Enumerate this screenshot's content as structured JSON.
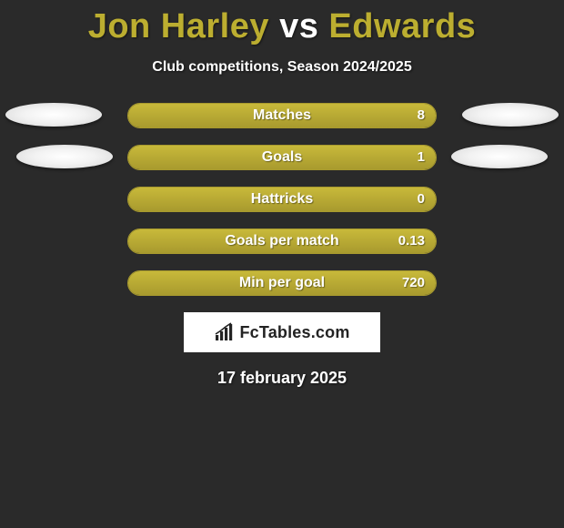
{
  "title_color": "#bcae30",
  "title_player1": "Jon Harley",
  "title_vs": "vs",
  "title_player2": "Edwards",
  "subtitle": "Club competitions, Season 2024/2025",
  "rows": [
    {
      "label": "Matches",
      "left_val": "",
      "right_val": "8",
      "left_pct": 0,
      "right_pct": 100,
      "show_el_left": true,
      "show_el_right": true,
      "el_class_left": "l1",
      "el_class_right": "r1"
    },
    {
      "label": "Goals",
      "left_val": "",
      "right_val": "1",
      "left_pct": 0,
      "right_pct": 100,
      "show_el_left": true,
      "show_el_right": true,
      "el_class_left": "l2",
      "el_class_right": "r2"
    },
    {
      "label": "Hattricks",
      "left_val": "",
      "right_val": "0",
      "left_pct": 50,
      "right_pct": 50,
      "show_el_left": false,
      "show_el_right": false,
      "el_class_left": "",
      "el_class_right": ""
    },
    {
      "label": "Goals per match",
      "left_val": "",
      "right_val": "0.13",
      "left_pct": 0,
      "right_pct": 100,
      "show_el_left": false,
      "show_el_right": false,
      "el_class_left": "",
      "el_class_right": ""
    },
    {
      "label": "Min per goal",
      "left_val": "",
      "right_val": "720",
      "left_pct": 0,
      "right_pct": 100,
      "show_el_left": false,
      "show_el_right": false,
      "el_class_left": "",
      "el_class_right": ""
    }
  ],
  "brand": "FcTables.com",
  "date": "17 february 2025",
  "bar_border_color": "#a89a2e",
  "bar_fill_gradient_top": "#c8b93a",
  "bar_fill_gradient_bottom": "#a89a2e",
  "background_color": "#2a2a2a"
}
